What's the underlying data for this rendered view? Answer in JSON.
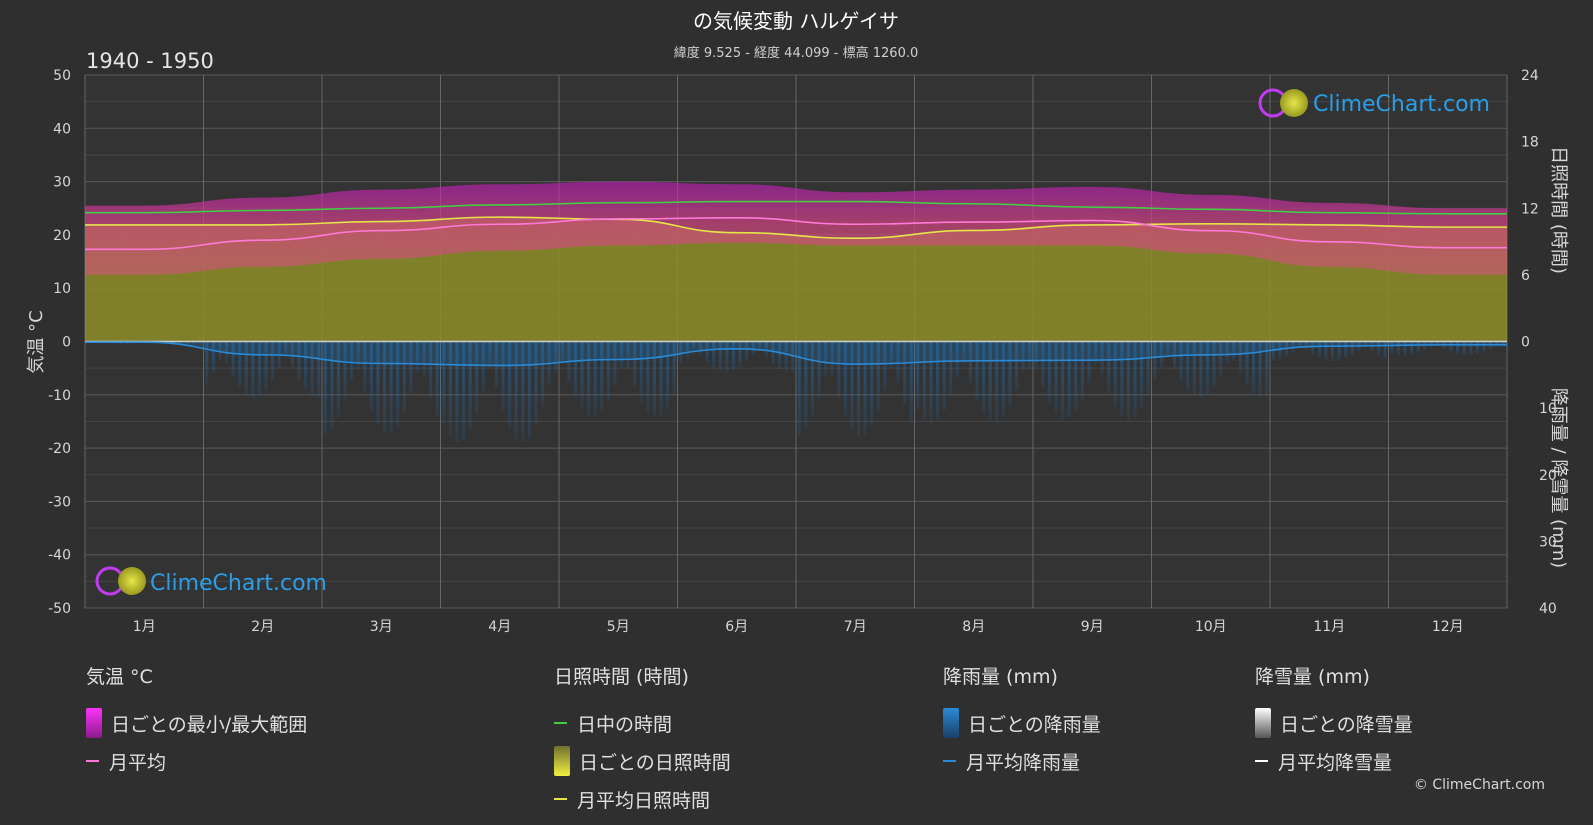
{
  "header": {
    "title": "の気候変動 ハルゲイサ",
    "subtitle": "緯度 9.525 - 経度 44.099 - 標高 1260.0",
    "period": "1940 - 1950"
  },
  "watermark": {
    "text": "ClimeChart.com"
  },
  "copyright": "© ClimeChart.com",
  "chart_data": {
    "type": "area",
    "months": [
      "1月",
      "2月",
      "3月",
      "4月",
      "5月",
      "6月",
      "7月",
      "8月",
      "9月",
      "10月",
      "11月",
      "12月"
    ],
    "axes": {
      "left": {
        "label": "気温 °C",
        "min": -50,
        "max": 50,
        "ticks": [
          50,
          40,
          30,
          20,
          10,
          0,
          -10,
          -20,
          -30,
          -40,
          -50
        ]
      },
      "right_top": {
        "label": "日照時間 (時間)",
        "min": 0,
        "max": 24,
        "ticks": [
          24,
          18,
          12,
          6,
          0
        ]
      },
      "right_bottom": {
        "label": "降雨量 / 降雪量 (mm)",
        "min": 0,
        "max": 40,
        "ticks": [
          0,
          10,
          20,
          30,
          40
        ]
      }
    },
    "series": {
      "daylight_hours": [
        11.6,
        11.8,
        12.0,
        12.3,
        12.5,
        12.6,
        12.6,
        12.4,
        12.1,
        11.9,
        11.6,
        11.5
      ],
      "sunshine_hours_monthly_mean": [
        10.5,
        10.5,
        10.8,
        11.2,
        11.0,
        9.8,
        9.3,
        10.0,
        10.5,
        10.6,
        10.5,
        10.3
      ],
      "temp_monthly_mean": [
        17.3,
        19.0,
        20.8,
        22.0,
        23.0,
        23.2,
        22.0,
        22.4,
        22.7,
        20.8,
        18.7,
        17.6
      ],
      "temp_daily_max_mean": [
        25.5,
        27.0,
        28.5,
        29.5,
        30.0,
        29.5,
        28.0,
        28.5,
        29.0,
        27.5,
        26.0,
        25.0
      ],
      "temp_daily_min_mean": [
        12.5,
        14.0,
        15.5,
        17.0,
        18.0,
        18.5,
        18.0,
        18.0,
        18.0,
        16.5,
        14.0,
        12.5
      ],
      "rain_monthly_mean_mm": [
        0.1,
        2.0,
        3.3,
        3.6,
        2.7,
        1.1,
        3.4,
        2.9,
        2.8,
        2.0,
        0.7,
        0.5
      ],
      "snow_monthly_mean_mm": [
        0,
        0,
        0,
        0,
        0,
        0,
        0,
        0,
        0,
        0,
        0,
        0
      ]
    },
    "grid": true
  },
  "legend": {
    "temperature": {
      "title": "気温 °C",
      "range": "日ごとの最小/最大範囲",
      "mean": "月平均"
    },
    "sunshine": {
      "title": "日照時間 (時間)",
      "daylight": "日中の時間",
      "daily": "日ごとの日照時間",
      "mean": "月平均日照時間"
    },
    "rain": {
      "title": "降雨量 (mm)",
      "daily": "日ごとの降雨量",
      "mean": "月平均降雨量"
    },
    "snow": {
      "title": "降雪量 (mm)",
      "daily": "日ごとの降雪量",
      "mean": "月平均降雪量"
    }
  },
  "colors": {
    "background": "#2f2f2f",
    "temp_range": "#d321c8",
    "temp_mean": "#ff7ad8",
    "sunshine_fill": "#8e8e2a",
    "sunshine_mean": "#e5e54a",
    "daylight": "#44cc44",
    "rain": "#1f6fb3",
    "rain_mean": "#2a8ad6",
    "snow": "#ffffff"
  }
}
